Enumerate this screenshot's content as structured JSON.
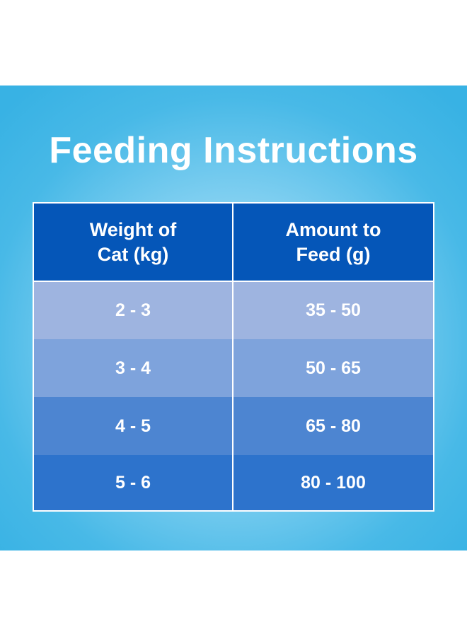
{
  "title": "Feeding Instructions",
  "table": {
    "headers": [
      "Weight of\nCat (kg)",
      "Amount to\nFeed (g)"
    ],
    "rows": [
      [
        "2 - 3",
        "35 - 50"
      ],
      [
        "3 - 4",
        "50 - 65"
      ],
      [
        "4 - 5",
        "65 - 80"
      ],
      [
        "5 - 6",
        "80 - 100"
      ]
    ]
  },
  "colors": {
    "background": "#38b2e4",
    "header": "#0556b8",
    "row1": "#9eb4e0",
    "row2": "#7ea3dc",
    "row3": "#4d85d1",
    "row4": "#2d73cc",
    "text": "#ffffff"
  }
}
